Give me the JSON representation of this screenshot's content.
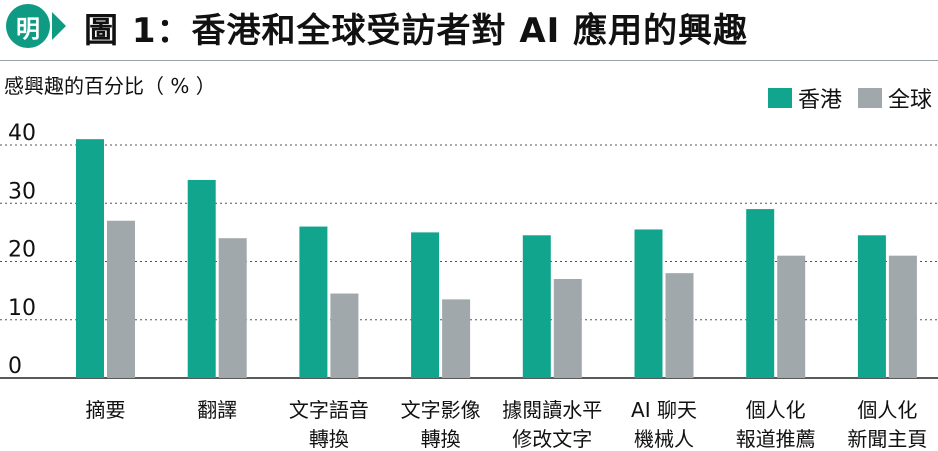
{
  "header": {
    "badge": "明",
    "title": "圖 1：香港和全球受訪者對 AI 應用的興趣"
  },
  "chart_data": {
    "type": "bar",
    "title": "圖 1：香港和全球受訪者對 AI 應用的興趣",
    "ylabel": "感興趣的百分比（ % ）",
    "xlabel": "",
    "ylim": [
      0,
      40
    ],
    "yticks": [
      0,
      10,
      20,
      30,
      40
    ],
    "grid": true,
    "legend_position": "top-right",
    "categories": [
      [
        "摘要"
      ],
      [
        "翻譯"
      ],
      [
        "文字語音",
        "轉換"
      ],
      [
        "文字影像",
        "轉換"
      ],
      [
        "據閱讀水平",
        "修改文字"
      ],
      [
        "AI 聊天",
        "機械人"
      ],
      [
        "個人化",
        "報道推薦"
      ],
      [
        "個人化",
        "新聞主頁"
      ]
    ],
    "series": [
      {
        "name": "香港",
        "color": "#11a58d",
        "values": [
          41,
          34,
          26,
          25,
          24.5,
          25.5,
          29,
          24.5
        ]
      },
      {
        "name": "全球",
        "color": "#a1a8ac",
        "values": [
          27,
          24,
          14.5,
          13.5,
          17,
          18,
          21,
          21
        ]
      }
    ]
  }
}
